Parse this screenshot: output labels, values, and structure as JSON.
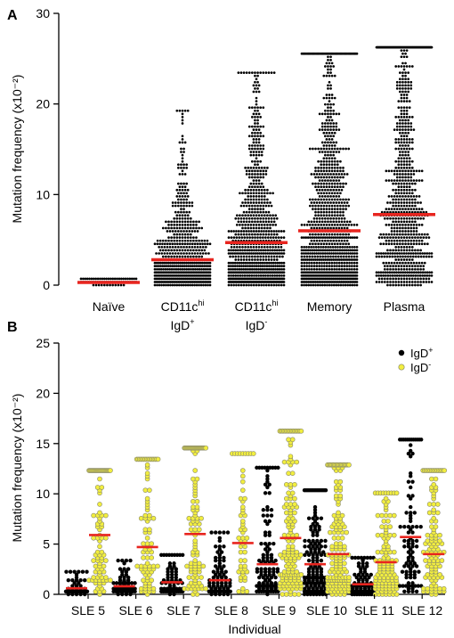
{
  "chart_data": [
    {
      "type": "scatter",
      "panel_label": "A",
      "ylabel": "Mutation frequency (x10⁻²)",
      "ylim": [
        0,
        30
      ],
      "yticks": [
        0,
        10,
        20,
        30
      ],
      "grid": false,
      "median_color": "#e8251f",
      "dot_color": "#000000",
      "categories": [
        {
          "label": "Naïve",
          "label_line2": "",
          "median": 0.3,
          "max": 0.8,
          "n": 70,
          "spread": "low"
        },
        {
          "label": "CD11c",
          "label_sup": "hi",
          "label_line2": "IgD",
          "label_line2_sup": "+",
          "median": 2.8,
          "max": 19.1,
          "n": 560
        },
        {
          "label": "CD11c",
          "label_sup": "hi",
          "label_line2": "IgD",
          "label_line2_sup": "-",
          "median": 4.7,
          "max": 23.4,
          "n": 760
        },
        {
          "label": "Memory",
          "label_line2": "",
          "median": 6.0,
          "max": 25.5,
          "n": 900
        },
        {
          "label": "Plasma",
          "label_line2": "",
          "median": 7.8,
          "max": 26.4,
          "n": 780
        }
      ]
    },
    {
      "type": "scatter",
      "panel_label": "B",
      "ylabel": "Mutation frequency (x10⁻²)",
      "xlabel": "Individual",
      "ylim": [
        0,
        25
      ],
      "yticks": [
        0,
        5,
        10,
        15,
        20,
        25
      ],
      "grid": false,
      "legend_position": "top-right",
      "median_color": "#e8251f",
      "series": [
        {
          "name": "IgD",
          "name_sup": "+",
          "color": "#000000",
          "stroke": "#000000"
        },
        {
          "name": "IgD",
          "name_sup": "-",
          "color": "#f2ee3f",
          "stroke": "#8a8a6a"
        }
      ],
      "individuals": [
        "SLE 5",
        "SLE 6",
        "SLE 7",
        "SLE 8",
        "SLE 9",
        "SLE 10",
        "SLE 11",
        "SLE 12"
      ],
      "groups": [
        {
          "individual": "SLE 5",
          "series": "IgD+",
          "median": 0.6,
          "max": 2.1,
          "n": 45
        },
        {
          "individual": "SLE 5",
          "series": "IgD-",
          "median": 5.9,
          "max": 12.2,
          "n": 90
        },
        {
          "individual": "SLE 6",
          "series": "IgD+",
          "median": 0.8,
          "max": 3.4,
          "n": 55
        },
        {
          "individual": "SLE 6",
          "series": "IgD-",
          "median": 4.7,
          "max": 13.4,
          "n": 85
        },
        {
          "individual": "SLE 7",
          "series": "IgD+",
          "median": 1.2,
          "max": 3.9,
          "n": 60
        },
        {
          "individual": "SLE 7",
          "series": "IgD-",
          "median": 6.0,
          "max": 14.6,
          "n": 105
        },
        {
          "individual": "SLE 8",
          "series": "IgD+",
          "median": 1.4,
          "max": 6.3,
          "n": 75
        },
        {
          "individual": "SLE 8",
          "series": "IgD-",
          "median": 5.1,
          "max": 14.0,
          "n": 55
        },
        {
          "individual": "SLE 9",
          "series": "IgD+",
          "median": 3.0,
          "max": 12.6,
          "n": 110
        },
        {
          "individual": "SLE 9",
          "series": "IgD-",
          "median": 5.6,
          "max": 16.1,
          "n": 150
        },
        {
          "individual": "SLE 10",
          "series": "IgD+",
          "median": 3.0,
          "max": 10.5,
          "n": 140
        },
        {
          "individual": "SLE 10",
          "series": "IgD-",
          "median": 4.0,
          "max": 13.0,
          "n": 150
        },
        {
          "individual": "SLE 11",
          "series": "IgD+",
          "median": 1.0,
          "max": 3.7,
          "n": 70
        },
        {
          "individual": "SLE 11",
          "series": "IgD-",
          "median": 3.2,
          "max": 10.2,
          "n": 120
        },
        {
          "individual": "SLE 12",
          "series": "IgD+",
          "median": 5.7,
          "max": 15.3,
          "n": 95
        },
        {
          "individual": "SLE 12",
          "series": "IgD-",
          "median": 4.0,
          "max": 12.2,
          "n": 115
        }
      ]
    }
  ]
}
